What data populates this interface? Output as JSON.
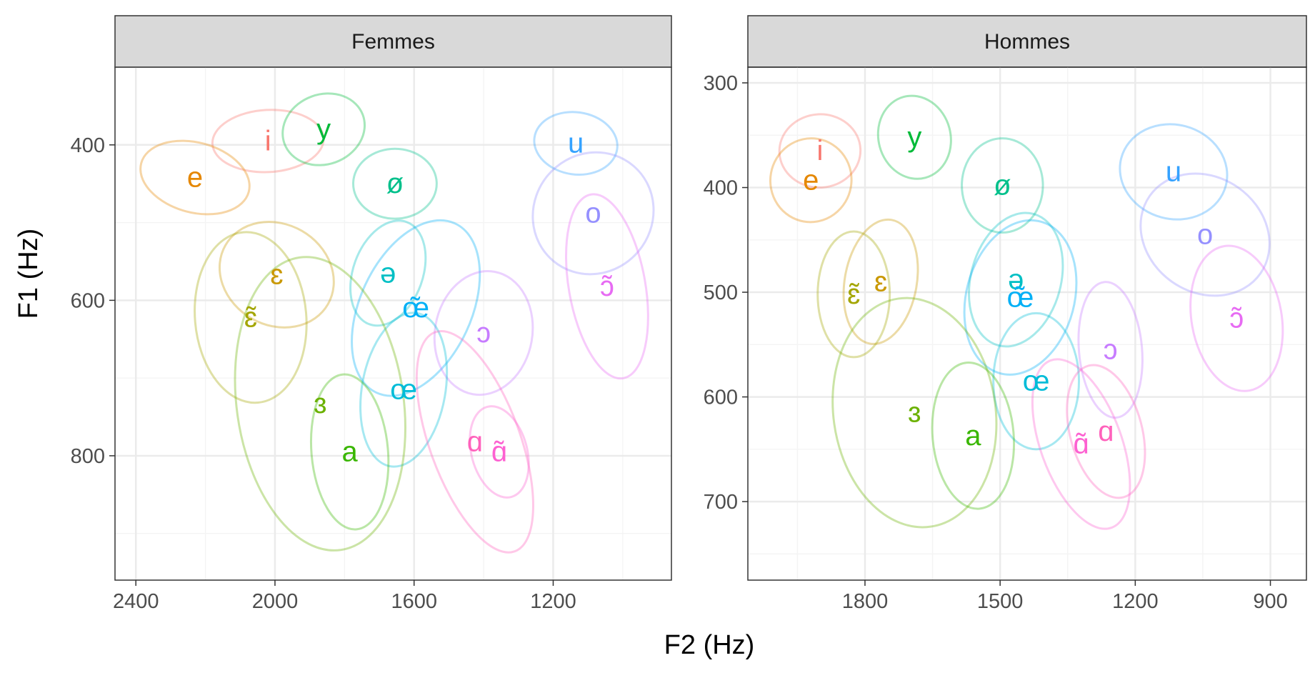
{
  "chart_data": {
    "type": "scatter",
    "xlabel": "F2 (Hz)",
    "ylabel": "F1 (Hz)",
    "grid": true,
    "legend": "none",
    "panels": [
      {
        "title": "Femmes",
        "xlim": [
          2460,
          860
        ],
        "ylim": [
          960,
          300
        ],
        "xticks": [
          2400,
          2000,
          1600,
          1200
        ],
        "yticks": [
          400,
          600,
          800
        ],
        "points": [
          {
            "label": "i",
            "x": 2020,
            "y": 395,
            "color": "#F8766D"
          },
          {
            "label": "y",
            "x": 1860,
            "y": 380,
            "color": "#00BA38"
          },
          {
            "label": "e",
            "x": 2230,
            "y": 442,
            "color": "#E58700"
          },
          {
            "label": "ø",
            "x": 1655,
            "y": 450,
            "color": "#00C08B"
          },
          {
            "label": "u",
            "x": 1135,
            "y": 398,
            "color": "#35A2FF"
          },
          {
            "label": "o",
            "x": 1085,
            "y": 488,
            "color": "#9590FF"
          },
          {
            "label": "ɛ",
            "x": 1995,
            "y": 567,
            "color": "#C99800"
          },
          {
            "label": "ə",
            "x": 1675,
            "y": 565,
            "color": "#00BFC4"
          },
          {
            "label": "ɔ̃",
            "x": 1045,
            "y": 582,
            "color": "#E76BF3"
          },
          {
            "label": "ɛ̃",
            "x": 2070,
            "y": 622,
            "color": "#A3A500"
          },
          {
            "label": "œ̃",
            "x": 1595,
            "y": 610,
            "color": "#00B0F6"
          },
          {
            "label": "ɔ",
            "x": 1400,
            "y": 642,
            "color": "#C77CFF"
          },
          {
            "label": "œ",
            "x": 1630,
            "y": 715,
            "color": "#00BCD8"
          },
          {
            "label": "ɜ",
            "x": 1870,
            "y": 733,
            "color": "#6BB100"
          },
          {
            "label": "a",
            "x": 1785,
            "y": 795,
            "color": "#39B600"
          },
          {
            "label": "ɑ",
            "x": 1425,
            "y": 782,
            "color": "#FF62BC"
          },
          {
            "label": "ɑ̃",
            "x": 1355,
            "y": 795,
            "color": "#FD61D1"
          }
        ]
      },
      {
        "title": "Hommes",
        "xlim": [
          2060,
          820
        ],
        "ylim": [
          775,
          285
        ],
        "xticks": [
          1800,
          1500,
          1200,
          900
        ],
        "yticks": [
          300,
          400,
          500,
          600,
          700
        ],
        "points": [
          {
            "label": "i",
            "x": 1900,
            "y": 365,
            "color": "#F8766D"
          },
          {
            "label": "y",
            "x": 1690,
            "y": 352,
            "color": "#00BA38"
          },
          {
            "label": "e",
            "x": 1920,
            "y": 393,
            "color": "#E58700"
          },
          {
            "label": "ø",
            "x": 1495,
            "y": 398,
            "color": "#00C08B"
          },
          {
            "label": "u",
            "x": 1115,
            "y": 385,
            "color": "#35A2FF"
          },
          {
            "label": "o",
            "x": 1045,
            "y": 445,
            "color": "#9590FF"
          },
          {
            "label": "ɛ",
            "x": 1765,
            "y": 490,
            "color": "#C99800"
          },
          {
            "label": "ə",
            "x": 1465,
            "y": 488,
            "color": "#00BFC4"
          },
          {
            "label": "ɛ̃",
            "x": 1825,
            "y": 502,
            "color": "#A3A500"
          },
          {
            "label": "œ̃",
            "x": 1455,
            "y": 505,
            "color": "#00B0F6"
          },
          {
            "label": "ɔ̃",
            "x": 975,
            "y": 525,
            "color": "#E76BF3"
          },
          {
            "label": "ɔ",
            "x": 1255,
            "y": 555,
            "color": "#C77CFF"
          },
          {
            "label": "œ",
            "x": 1420,
            "y": 585,
            "color": "#00BCD8"
          },
          {
            "label": "ɜ",
            "x": 1690,
            "y": 615,
            "color": "#6BB100"
          },
          {
            "label": "a",
            "x": 1560,
            "y": 637,
            "color": "#39B600"
          },
          {
            "label": "ɑ",
            "x": 1265,
            "y": 633,
            "color": "#FF62BC"
          },
          {
            "label": "ɑ̃",
            "x": 1320,
            "y": 645,
            "color": "#FD61D1"
          }
        ]
      }
    ]
  }
}
